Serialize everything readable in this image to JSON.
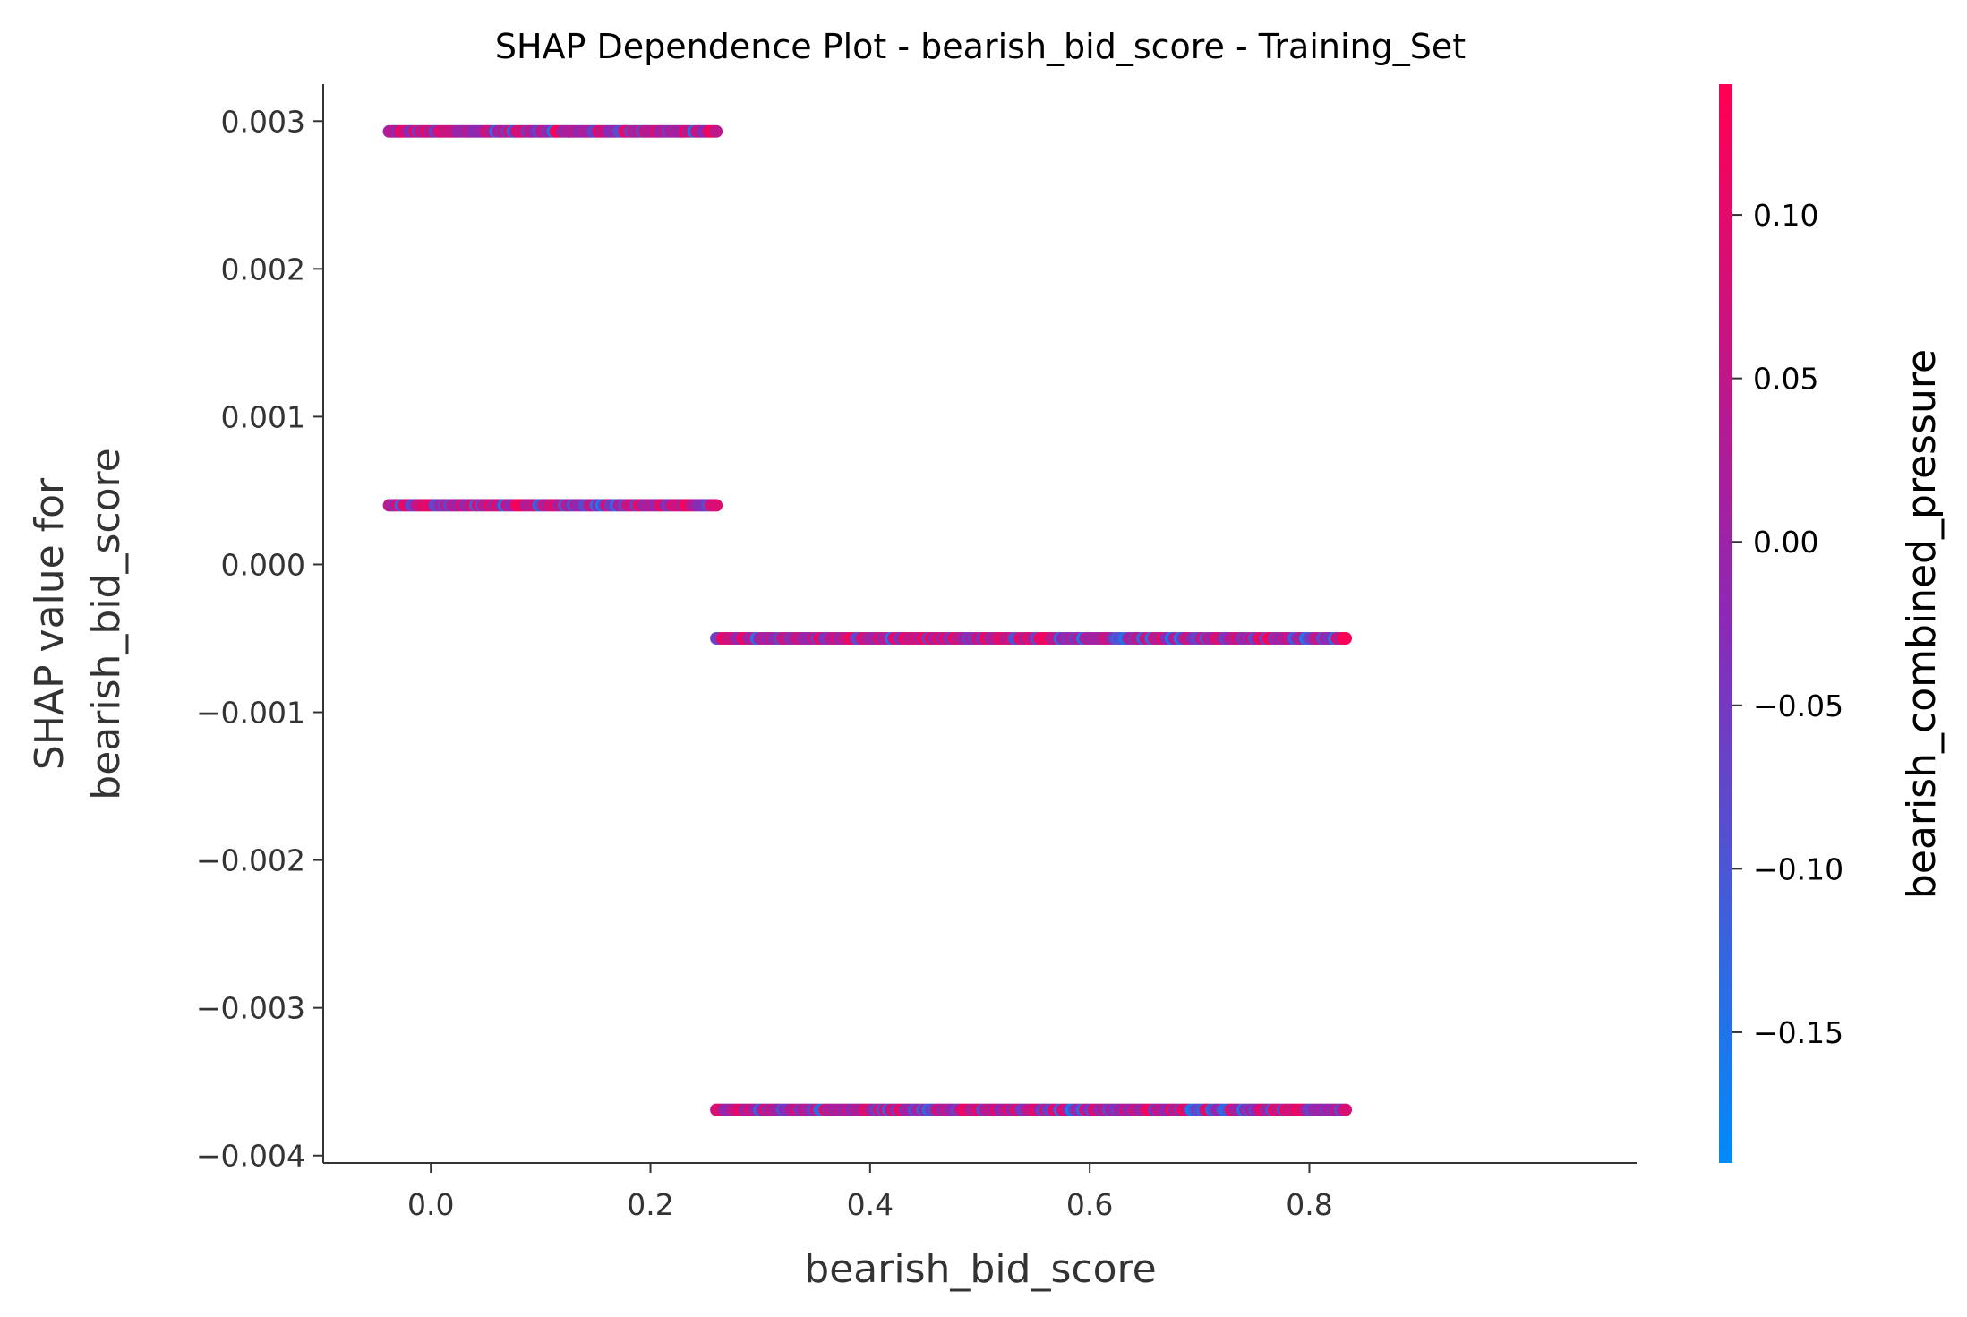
{
  "chart_data": {
    "type": "scatter",
    "title": "SHAP Dependence Plot - bearish_bid_score - Training_Set",
    "xlabel": "bearish_bid_score",
    "ylabel_lines": [
      "SHAP value for",
      "bearish_bid_score"
    ],
    "xlim": [
      -0.098,
      1.098
    ],
    "ylim": [
      -0.00405,
      0.00325
    ],
    "x_ticks": [
      0.0,
      0.2,
      0.4,
      0.6,
      0.8
    ],
    "x_tick_labels": [
      "0.0",
      "0.2",
      "0.4",
      "0.6",
      "0.8"
    ],
    "y_ticks": [
      0.003,
      0.002,
      0.001,
      0.0,
      -0.001,
      -0.002,
      -0.003,
      -0.004
    ],
    "y_tick_labels": [
      "0.003",
      "0.002",
      "0.001",
      "0.000",
      "−0.001",
      "−0.002",
      "−0.003",
      "−0.004"
    ],
    "grid": false,
    "colorbar": {
      "label": "bearish_combined_pressure",
      "range": [
        -0.19,
        0.14
      ],
      "ticks": [
        0.1,
        0.05,
        0.0,
        -0.05,
        -0.1,
        -0.15
      ],
      "tick_labels": [
        "0.10",
        "0.05",
        "0.00",
        "−0.05",
        "−0.10",
        "−0.15"
      ],
      "color_low": "#008bfb",
      "color_high": "#ff0052"
    },
    "bands": [
      {
        "y": 0.00293,
        "x_min": -0.038,
        "x_max": 0.26
      },
      {
        "y": 0.0004,
        "x_min": -0.038,
        "x_max": 0.26
      },
      {
        "y": -0.0005,
        "x_min": 0.26,
        "x_max": 0.833
      },
      {
        "y": -0.00369,
        "x_min": 0.26,
        "x_max": 0.833
      }
    ]
  }
}
